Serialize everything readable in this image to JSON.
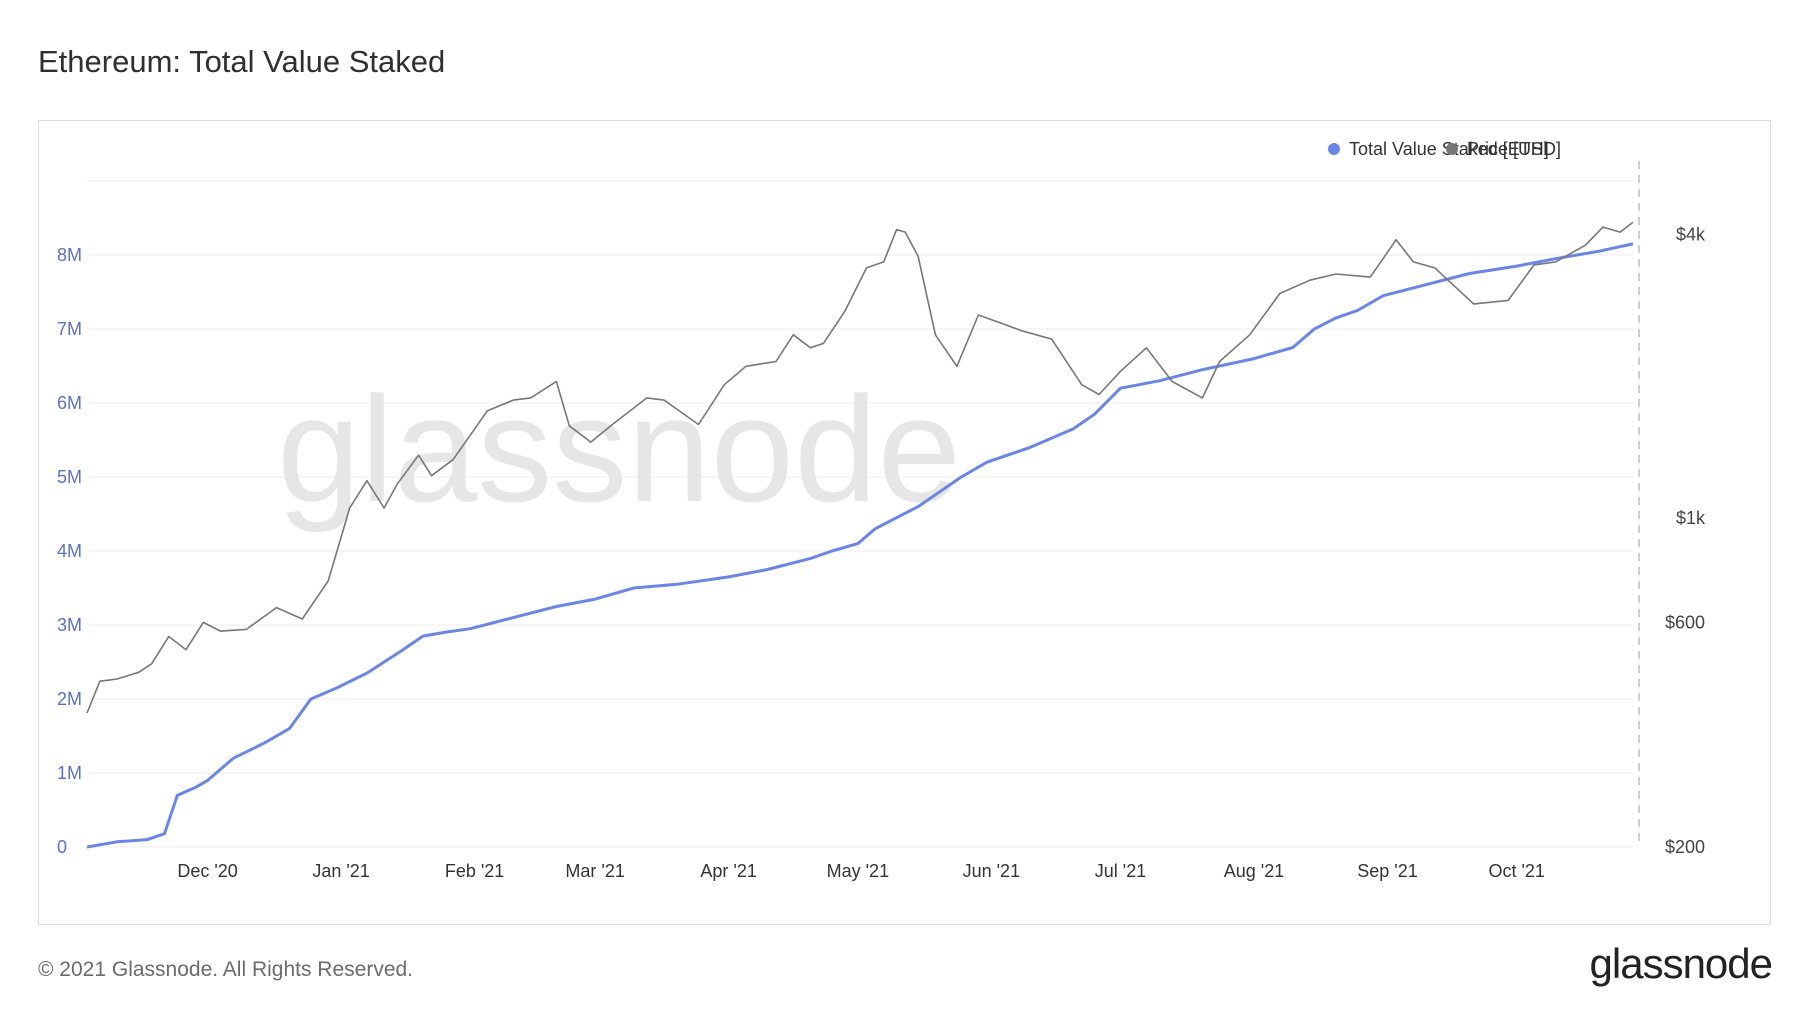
{
  "header": {
    "title": "Ethereum: Total Value Staked"
  },
  "footer": {
    "copyright": "© 2021 Glassnode. All Rights Reserved.",
    "logo_text": "glassnode"
  },
  "watermark": "glassnode",
  "colors": {
    "staked": "#6b85e6",
    "price": "#777777",
    "left_axis": "#5b6fc9",
    "grid": "#ececec"
  },
  "chart_data": {
    "type": "line",
    "title": "Ethereum: Total Value Staked",
    "xlabel": "",
    "ylabel": "",
    "x_range": [
      "2020-11-03",
      "2021-10-28"
    ],
    "x_ticks": [
      {
        "date": "2020-12-01",
        "label": "Dec '20"
      },
      {
        "date": "2021-01-01",
        "label": "Jan '21"
      },
      {
        "date": "2021-02-01",
        "label": "Feb '21"
      },
      {
        "date": "2021-03-01",
        "label": "Mar '21"
      },
      {
        "date": "2021-04-01",
        "label": "Apr '21"
      },
      {
        "date": "2021-05-01",
        "label": "May '21"
      },
      {
        "date": "2021-06-01",
        "label": "Jun '21"
      },
      {
        "date": "2021-07-01",
        "label": "Jul '21"
      },
      {
        "date": "2021-08-01",
        "label": "Aug '21"
      },
      {
        "date": "2021-09-01",
        "label": "Sep '21"
      },
      {
        "date": "2021-10-01",
        "label": "Oct '21"
      }
    ],
    "y_left": {
      "ylim": [
        0,
        9000000
      ],
      "ticks": [
        0,
        1000000,
        2000000,
        3000000,
        4000000,
        5000000,
        6000000,
        7000000,
        8000000
      ],
      "tick_labels": [
        "0",
        "1M",
        "2M",
        "3M",
        "4M",
        "5M",
        "6M",
        "7M",
        "8M"
      ]
    },
    "y_right": {
      "scale": "log",
      "ylim": [
        200,
        5200
      ],
      "ticks": [
        200,
        600,
        1000,
        4000
      ],
      "tick_labels": [
        "$200",
        "$600",
        "$1k",
        "$4k"
      ]
    },
    "legend_position": "top-right",
    "grid": true,
    "series": [
      {
        "name": "Total Value Staked [ETH]",
        "axis": "left",
        "x": [
          "2020-11-03",
          "2020-11-10",
          "2020-11-17",
          "2020-11-21",
          "2020-11-24",
          "2020-11-28",
          "2020-12-01",
          "2020-12-07",
          "2020-12-14",
          "2020-12-20",
          "2020-12-25",
          "2020-12-31",
          "2021-01-07",
          "2021-01-15",
          "2021-01-20",
          "2021-01-25",
          "2021-01-31",
          "2021-02-10",
          "2021-02-20",
          "2021-03-01",
          "2021-03-10",
          "2021-03-20",
          "2021-04-01",
          "2021-04-10",
          "2021-04-20",
          "2021-04-25",
          "2021-05-01",
          "2021-05-05",
          "2021-05-10",
          "2021-05-15",
          "2021-05-20",
          "2021-05-25",
          "2021-05-31",
          "2021-06-10",
          "2021-06-20",
          "2021-06-25",
          "2021-07-01",
          "2021-07-10",
          "2021-07-20",
          "2021-08-01",
          "2021-08-10",
          "2021-08-15",
          "2021-08-20",
          "2021-08-25",
          "2021-08-31",
          "2021-09-10",
          "2021-09-20",
          "2021-10-01",
          "2021-10-10",
          "2021-10-20",
          "2021-10-28"
        ],
        "values": [
          0,
          70000,
          100000,
          180000,
          700000,
          800000,
          900000,
          1200000,
          1400000,
          1600000,
          2000000,
          2150000,
          2350000,
          2650000,
          2850000,
          2900000,
          2950000,
          3100000,
          3250000,
          3350000,
          3500000,
          3550000,
          3650000,
          3750000,
          3900000,
          4000000,
          4100000,
          4300000,
          4450000,
          4600000,
          4800000,
          5000000,
          5200000,
          5400000,
          5650000,
          5850000,
          6200000,
          6300000,
          6450000,
          6600000,
          6750000,
          7000000,
          7150000,
          7250000,
          7450000,
          7600000,
          7750000,
          7850000,
          7950000,
          8050000,
          8150000
        ]
      },
      {
        "name": "Price [USD]",
        "axis": "right",
        "x": [
          "2020-11-03",
          "2020-11-06",
          "2020-11-10",
          "2020-11-15",
          "2020-11-18",
          "2020-11-22",
          "2020-11-26",
          "2020-11-30",
          "2020-12-04",
          "2020-12-10",
          "2020-12-17",
          "2020-12-23",
          "2020-12-29",
          "2021-01-03",
          "2021-01-07",
          "2021-01-11",
          "2021-01-14",
          "2021-01-19",
          "2021-01-22",
          "2021-01-27",
          "2021-02-04",
          "2021-02-10",
          "2021-02-14",
          "2021-02-20",
          "2021-02-23",
          "2021-02-28",
          "2021-03-05",
          "2021-03-13",
          "2021-03-17",
          "2021-03-25",
          "2021-03-31",
          "2021-04-05",
          "2021-04-12",
          "2021-04-16",
          "2021-04-20",
          "2021-04-23",
          "2021-04-28",
          "2021-05-03",
          "2021-05-07",
          "2021-05-10",
          "2021-05-12",
          "2021-05-15",
          "2021-05-19",
          "2021-05-24",
          "2021-05-29",
          "2021-06-03",
          "2021-06-08",
          "2021-06-15",
          "2021-06-22",
          "2021-06-26",
          "2021-07-01",
          "2021-07-07",
          "2021-07-13",
          "2021-07-20",
          "2021-07-24",
          "2021-07-31",
          "2021-08-07",
          "2021-08-14",
          "2021-08-20",
          "2021-08-28",
          "2021-09-03",
          "2021-09-07",
          "2021-09-12",
          "2021-09-21",
          "2021-09-29",
          "2021-10-05",
          "2021-10-10",
          "2021-10-17",
          "2021-10-21",
          "2021-10-25",
          "2021-10-28"
        ],
        "values": [
          385,
          450,
          455,
          470,
          490,
          560,
          525,
          600,
          575,
          580,
          645,
          610,
          735,
          1050,
          1200,
          1050,
          1180,
          1360,
          1230,
          1330,
          1690,
          1780,
          1800,
          1950,
          1570,
          1450,
          1580,
          1800,
          1780,
          1580,
          1920,
          2100,
          2150,
          2450,
          2300,
          2350,
          2750,
          3400,
          3500,
          4100,
          4050,
          3600,
          2450,
          2100,
          2700,
          2600,
          2500,
          2400,
          1920,
          1830,
          2050,
          2300,
          1950,
          1800,
          2150,
          2450,
          3000,
          3200,
          3300,
          3250,
          3900,
          3500,
          3400,
          2850,
          2900,
          3450,
          3500,
          3800,
          4150,
          4050,
          4250
        ]
      }
    ]
  }
}
